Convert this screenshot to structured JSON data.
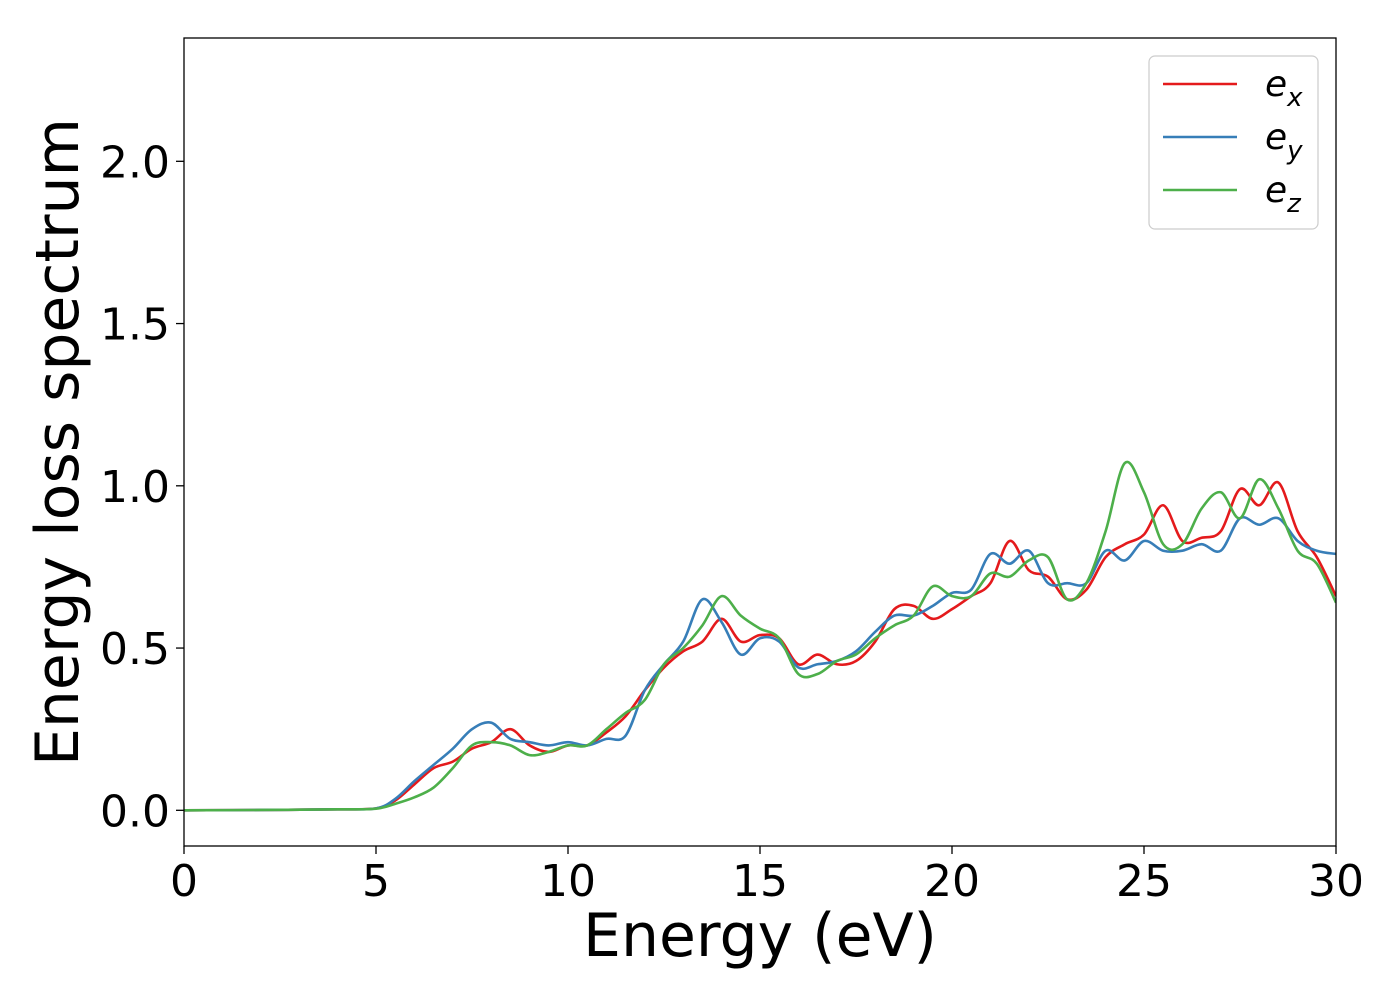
{
  "chart_data": {
    "type": "line",
    "title": "",
    "xlabel": "Energy (eV)",
    "ylabel": "Energy loss spectrum",
    "xlim": [
      0,
      30
    ],
    "ylim": [
      -0.11,
      2.38
    ],
    "xticks": [
      0,
      5,
      10,
      15,
      20,
      25,
      30
    ],
    "xtick_labels": [
      "0",
      "5",
      "10",
      "15",
      "20",
      "25",
      "30"
    ],
    "yticks": [
      0.0,
      0.5,
      1.0,
      1.5,
      2.0
    ],
    "ytick_labels": [
      "0.0",
      "0.5",
      "1.0",
      "1.5",
      "2.0"
    ],
    "grid": false,
    "legend_position": "top-right",
    "series": [
      {
        "name": "e",
        "subscript": "x",
        "color": "#e41a1c",
        "x": [
          0,
          2,
          4,
          5,
          5.5,
          6,
          6.5,
          7,
          7.5,
          8,
          8.5,
          9,
          9.5,
          10,
          10.5,
          11,
          11.5,
          12,
          12.5,
          13,
          13.5,
          14,
          14.5,
          15,
          15.5,
          16,
          16.5,
          17,
          17.5,
          18,
          18.5,
          19,
          19.5,
          20,
          20.5,
          21,
          21.5,
          22,
          22.5,
          23,
          23.5,
          24,
          24.5,
          25,
          25.5,
          26,
          26.5,
          27,
          27.5,
          28,
          28.5,
          29,
          29.5,
          30
        ],
        "y": [
          0,
          0.001,
          0.003,
          0.006,
          0.03,
          0.08,
          0.13,
          0.15,
          0.19,
          0.21,
          0.25,
          0.2,
          0.18,
          0.2,
          0.2,
          0.24,
          0.29,
          0.37,
          0.44,
          0.49,
          0.52,
          0.59,
          0.52,
          0.54,
          0.53,
          0.45,
          0.48,
          0.45,
          0.46,
          0.52,
          0.62,
          0.63,
          0.59,
          0.62,
          0.66,
          0.7,
          0.83,
          0.74,
          0.72,
          0.65,
          0.68,
          0.78,
          0.82,
          0.85,
          0.94,
          0.83,
          0.84,
          0.86,
          0.99,
          0.94,
          1.01,
          0.86,
          0.78,
          0.66
        ]
      },
      {
        "name": "e",
        "subscript": "y",
        "color": "#377eb8",
        "x": [
          0,
          2,
          4,
          5,
          5.5,
          6,
          6.5,
          7,
          7.5,
          8,
          8.5,
          9,
          9.5,
          10,
          10.5,
          11,
          11.5,
          12,
          12.5,
          13,
          13.5,
          14,
          14.5,
          15,
          15.5,
          16,
          16.5,
          17,
          17.5,
          18,
          18.5,
          19,
          19.5,
          20,
          20.5,
          21,
          21.5,
          22,
          22.5,
          23,
          23.5,
          24,
          24.5,
          25,
          25.5,
          26,
          26.5,
          27,
          27.5,
          28,
          28.5,
          29,
          29.5,
          30
        ],
        "y": [
          0,
          0.001,
          0.003,
          0.006,
          0.035,
          0.09,
          0.14,
          0.19,
          0.25,
          0.27,
          0.22,
          0.21,
          0.2,
          0.21,
          0.2,
          0.22,
          0.23,
          0.37,
          0.45,
          0.52,
          0.65,
          0.58,
          0.48,
          0.53,
          0.52,
          0.44,
          0.45,
          0.46,
          0.49,
          0.55,
          0.6,
          0.6,
          0.63,
          0.67,
          0.68,
          0.79,
          0.76,
          0.8,
          0.7,
          0.7,
          0.7,
          0.8,
          0.77,
          0.83,
          0.8,
          0.8,
          0.82,
          0.8,
          0.9,
          0.88,
          0.9,
          0.83,
          0.8,
          0.79
        ]
      },
      {
        "name": "e",
        "subscript": "z",
        "color": "#4daf4a",
        "x": [
          0,
          2,
          4,
          5,
          5.5,
          6,
          6.5,
          7,
          7.5,
          8,
          8.5,
          9,
          9.5,
          10,
          10.5,
          11,
          11.5,
          12,
          12.5,
          13,
          13.5,
          14,
          14.5,
          15,
          15.5,
          16,
          16.5,
          17,
          17.5,
          18,
          18.5,
          19,
          19.5,
          20,
          20.5,
          21,
          21.5,
          22,
          22.5,
          23,
          23.5,
          24,
          24.5,
          25,
          25.5,
          26,
          26.5,
          27,
          27.5,
          28,
          28.5,
          29,
          29.5,
          30
        ],
        "y": [
          0,
          0.001,
          0.003,
          0.005,
          0.02,
          0.04,
          0.07,
          0.13,
          0.2,
          0.21,
          0.2,
          0.17,
          0.18,
          0.2,
          0.2,
          0.25,
          0.3,
          0.34,
          0.45,
          0.5,
          0.57,
          0.66,
          0.6,
          0.56,
          0.53,
          0.42,
          0.42,
          0.46,
          0.48,
          0.53,
          0.57,
          0.6,
          0.69,
          0.66,
          0.66,
          0.73,
          0.72,
          0.77,
          0.78,
          0.65,
          0.7,
          0.86,
          1.07,
          0.98,
          0.82,
          0.82,
          0.93,
          0.98,
          0.9,
          1.02,
          0.93,
          0.8,
          0.76,
          0.64
        ]
      }
    ]
  }
}
